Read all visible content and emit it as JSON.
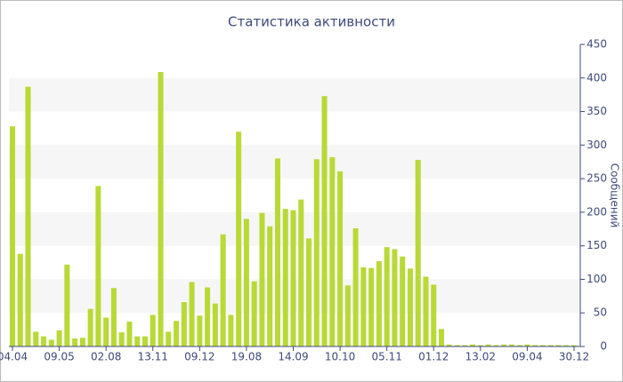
{
  "chart_data": {
    "type": "bar",
    "title": "Статистика активности",
    "y_label": "Сообщений",
    "categories": [
      "04.04",
      null,
      null,
      null,
      null,
      null,
      "09.05",
      null,
      null,
      null,
      null,
      null,
      "02.08",
      null,
      null,
      null,
      null,
      null,
      "13.11",
      null,
      null,
      null,
      null,
      null,
      "09.12",
      null,
      null,
      null,
      null,
      null,
      "19.08",
      null,
      null,
      null,
      null,
      null,
      "14.09",
      null,
      null,
      null,
      null,
      null,
      "10.10",
      null,
      null,
      null,
      null,
      null,
      "05.11",
      null,
      null,
      null,
      null,
      null,
      "01.12",
      null,
      null,
      null,
      null,
      null,
      "13.02",
      null,
      null,
      null,
      null,
      null,
      "09.04",
      null,
      null,
      null,
      null,
      null,
      "30.12"
    ],
    "values": [
      328,
      138,
      387,
      22,
      15,
      10,
      24,
      122,
      12,
      13,
      56,
      239,
      43,
      87,
      21,
      37,
      15,
      15,
      47,
      409,
      22,
      38,
      66,
      96,
      46,
      88,
      64,
      167,
      47,
      320,
      190,
      97,
      199,
      179,
      280,
      205,
      203,
      219,
      161,
      279,
      373,
      282,
      261,
      91,
      176,
      118,
      117,
      127,
      148,
      145,
      134,
      116,
      278,
      104,
      92,
      26,
      3,
      2,
      2,
      3,
      2,
      3,
      2,
      3,
      3,
      2,
      3,
      2,
      2,
      2,
      2,
      2,
      2
    ],
    "color": "#b8d936",
    "ylim": [
      0,
      450
    ],
    "yticks": [
      0,
      50,
      100,
      150,
      200,
      250,
      300,
      350,
      400,
      450
    ],
    "grid_bands": true,
    "y_axis_side": "right"
  }
}
